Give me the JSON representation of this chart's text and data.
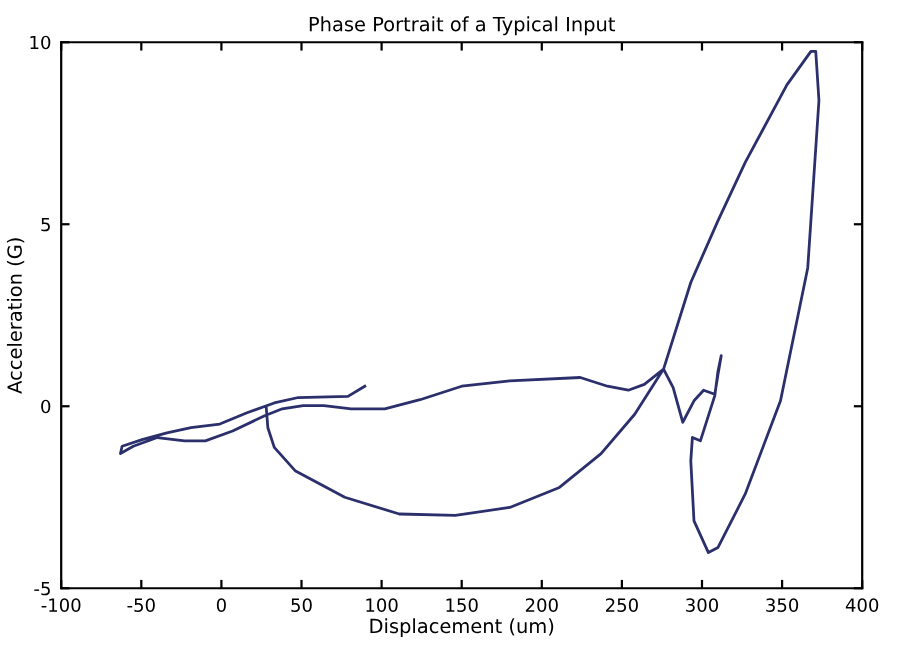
{
  "chart_data": {
    "type": "line",
    "title": "Phase Portrait of a Typical Input",
    "xlabel": "Displacement (um)",
    "ylabel": "Acceleration (G)",
    "xlim": [
      -100,
      400
    ],
    "xticks": [
      -100,
      -50,
      0,
      50,
      100,
      150,
      200,
      250,
      300,
      350,
      400
    ],
    "ylim": [
      -5,
      10
    ],
    "yticks": [
      -5,
      0,
      5,
      10
    ],
    "grid": false,
    "legend": false,
    "marker": "none",
    "line_style": "solid",
    "series": [
      {
        "color": "#2b2f6b",
        "x": [
          89.5,
          79,
          48,
          33,
          16,
          -1,
          -19,
          -34,
          -49,
          -62,
          -63,
          -55,
          -40,
          -23,
          -10,
          7,
          27,
          38,
          51,
          64,
          81,
          102,
          124,
          150,
          180,
          224,
          241,
          254,
          264,
          276,
          282,
          288,
          295,
          301,
          308,
          310,
          312,
          310,
          308,
          299,
          294,
          293,
          295,
          304,
          310,
          327,
          349,
          366,
          373,
          371,
          368,
          353,
          327,
          310,
          293,
          276,
          258,
          237,
          211,
          180,
          146,
          111,
          77,
          46,
          33,
          29,
          28
        ],
        "values": [
          0.55,
          0.27,
          0.24,
          0.09,
          -0.18,
          -0.49,
          -0.59,
          -0.73,
          -0.91,
          -1.1,
          -1.3,
          -1.1,
          -0.86,
          -0.95,
          -0.95,
          -0.68,
          -0.26,
          -0.07,
          0.02,
          0.02,
          -0.07,
          -0.07,
          0.18,
          0.55,
          0.7,
          0.79,
          0.55,
          0.44,
          0.6,
          1.02,
          0.51,
          -0.44,
          0.15,
          0.44,
          0.33,
          0.88,
          1.39,
          0.97,
          0.29,
          -0.95,
          -0.86,
          -1.5,
          -3.15,
          -4.02,
          -3.88,
          -2.41,
          0.15,
          3.8,
          8.4,
          9.75,
          9.75,
          8.83,
          6.7,
          5.1,
          3.4,
          1.02,
          -0.22,
          -1.3,
          -2.23,
          -2.78,
          -3.0,
          -2.96,
          -2.5,
          -1.77,
          -1.13,
          -0.59,
          -0.04
        ]
      }
    ]
  }
}
